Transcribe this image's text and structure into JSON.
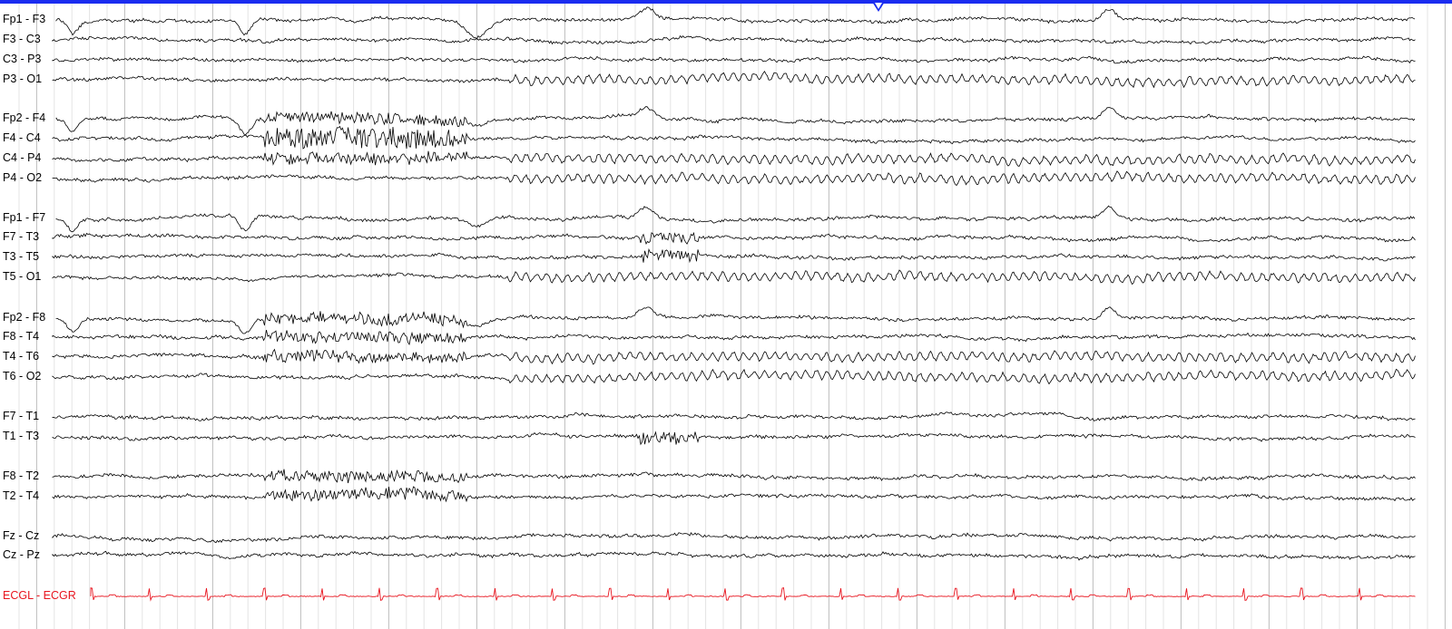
{
  "colors": {
    "trace": "#000000",
    "ecg": "#e8141e",
    "topbar": "#1a2cf0",
    "grid_minor": "#e4e4e4",
    "grid_major": "#bdbdbd"
  },
  "event_marker": "triangle-down-marker",
  "channels": [
    {
      "label": "Fp1 - F3"
    },
    {
      "label": "F3 - C3"
    },
    {
      "label": "C3 - P3"
    },
    {
      "label": "P3 - O1"
    },
    {
      "label": "Fp2 - F4"
    },
    {
      "label": "F4 - C4"
    },
    {
      "label": "C4 - P4"
    },
    {
      "label": "P4 - O2"
    },
    {
      "label": "Fp1 - F7"
    },
    {
      "label": "F7 - T3"
    },
    {
      "label": "T3 - T5"
    },
    {
      "label": "T5 - O1"
    },
    {
      "label": "Fp2 - F8"
    },
    {
      "label": "F8 - T4"
    },
    {
      "label": "T4 - T6"
    },
    {
      "label": "T6 - O2"
    },
    {
      "label": "F7 - T1"
    },
    {
      "label": "T1 - T3"
    },
    {
      "label": "F8 - T2"
    },
    {
      "label": "T2 - T4"
    },
    {
      "label": "Fz - Cz"
    },
    {
      "label": "Cz - Pz"
    },
    {
      "label": "ECGL - ECGR",
      "type": "ecg"
    }
  ]
}
